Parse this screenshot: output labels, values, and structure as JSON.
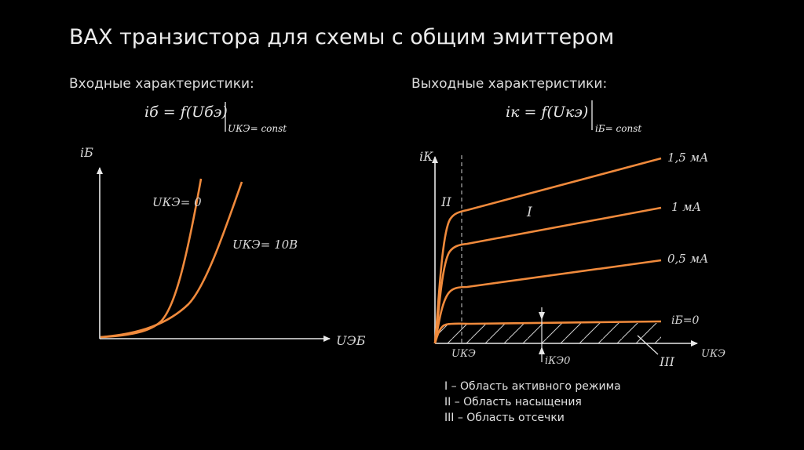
{
  "title": "ВАХ транзистора для схемы с общим эмиттером",
  "input": {
    "heading": "Входные характеристики:",
    "formula": "iб = f(Uбэ)",
    "condition": "UКЭ= const",
    "y_axis_label": "iБ",
    "x_axis_label": "UЭБ",
    "curves": [
      {
        "label": "UКЭ= 0"
      },
      {
        "label": "UКЭ= 10В"
      }
    ]
  },
  "output": {
    "heading": "Выходные характеристики:",
    "formula": "iк = f(Uкэ)",
    "condition": "iБ= const",
    "y_axis_label": "iК",
    "x_axis_label": "UКЭ",
    "vertical_marker_label": "UКЭ",
    "current_marker_label": "iКЭ0",
    "region_labels": {
      "active": "I",
      "saturation": "II",
      "cutoff": "III"
    },
    "curves": [
      {
        "label": "1,5 мА"
      },
      {
        "label": "1 мА"
      },
      {
        "label": "0,5 мА"
      },
      {
        "label": "iБ=0"
      }
    ]
  },
  "legend": [
    "I – Область активного режима",
    "II – Область насыщения",
    "III – Область отсечки"
  ],
  "colors": {
    "background": "#000000",
    "curve": "#f08a3c",
    "axis": "#e8e8e8",
    "text": "#e6e6e6"
  }
}
